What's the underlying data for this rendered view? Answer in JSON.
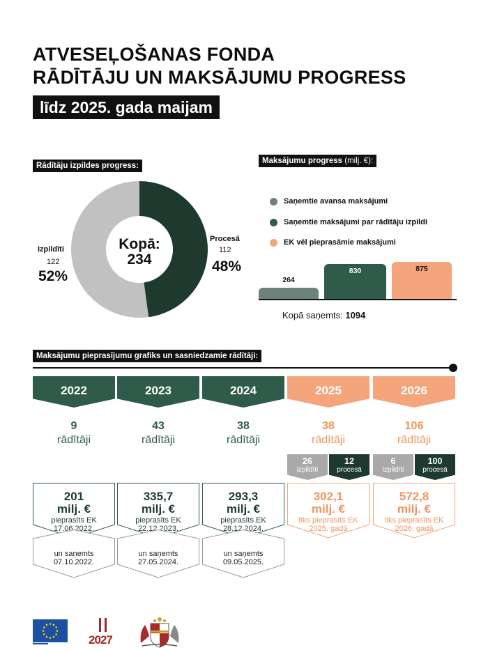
{
  "header": {
    "title_line1": "ATVESEĻOŠANAS FONDA",
    "title_line2": "RĀDĪTĀJU UN MAKSĀJUMU PROGRESS",
    "subtitle": "līdz 2025. gada maijam"
  },
  "indicators": {
    "section_label": "Rādītāju izpildes progress:",
    "center_label": "Kopā:",
    "center_value": "234",
    "done_label": "Izpildīti",
    "done_count": "122",
    "done_pct": "52%",
    "progress_label": "Procesā",
    "progress_count": "112",
    "progress_pct": "48%"
  },
  "payments": {
    "section_label": "Maksājumu progress",
    "section_unit": "(milj. €):",
    "legend": [
      {
        "label": "Saņemtie avansa maksājumi",
        "color": "#6e827c"
      },
      {
        "label": "Saņemtie maksājumi par rādītāju izpildi",
        "color": "#2f5c4a"
      },
      {
        "label": "EK vēl pieprasāmie maksājumi",
        "color": "#f4a57c"
      }
    ],
    "bar_labels": [
      "264",
      "830",
      "875"
    ],
    "total_label": "Kopā saņemts:",
    "total_value": "1094"
  },
  "schedule": {
    "section_label": "Maksājumu pieprasījumu grafiks un sasniedzamie rādītāji:",
    "years": [
      {
        "year": "2022",
        "count": "9",
        "unit": "rādītāji",
        "amount": "201",
        "amount_unit": "milj. €",
        "line1": "pieprasīts EK",
        "line2": "17.06.2022.",
        "received1": "un saņemts",
        "received2": "07.10.2022."
      },
      {
        "year": "2023",
        "count": "43",
        "unit": "rādītāji",
        "amount": "335,7",
        "amount_unit": "milj. €",
        "line1": "pieprasīts EK",
        "line2": "22.12.2023.",
        "received1": "un saņemts",
        "received2": "27.05.2024."
      },
      {
        "year": "2024",
        "count": "38",
        "unit": "rādītāji",
        "amount": "293,3",
        "amount_unit": "milj. €",
        "line1": "pieprasīts EK",
        "line2": "28.12.2024.",
        "received1": "un saņemts",
        "received2": "09.05.2025."
      },
      {
        "year": "2025",
        "count": "38",
        "unit": "rādītāji",
        "amount": "302,1",
        "amount_unit": "milj. €",
        "line1": "tiks pieprasīts EK",
        "line2": "2025. gadā",
        "tag_done_num": "26",
        "tag_done_lbl": "izpildīti",
        "tag_prog_num": "12",
        "tag_prog_lbl": "procesā"
      },
      {
        "year": "2026",
        "count": "106",
        "unit": "rādītāji",
        "amount": "572,8",
        "amount_unit": "milj. €",
        "line1": "tiks pieprasīts EK",
        "line2": "2026. gadā",
        "tag_done_num": "6",
        "tag_done_lbl": "izpildīti",
        "tag_prog_num": "100",
        "tag_prog_lbl": "procesā"
      }
    ]
  },
  "footer": {
    "logo_2027": "2027"
  },
  "chart_data": [
    {
      "type": "pie",
      "labels": [
        "Izpildīti",
        "Procesā"
      ],
      "values": [
        122,
        112
      ],
      "percentages": [
        52,
        48
      ],
      "colors": [
        "#c1c1c1",
        "#1e3a2f"
      ],
      "total": 234
    },
    {
      "type": "bar",
      "categories": [
        "Saņemtie avansa maksājumi",
        "Saņemtie maksājumi par rādītāju izpildi",
        "EK vēl pieprasāmie maksājumi"
      ],
      "values": [
        264,
        830,
        875
      ],
      "colors": [
        "#6e827c",
        "#2f5c4a",
        "#f4a57c"
      ],
      "ylabel": "milj. €",
      "ylim": [
        0,
        875
      ]
    }
  ]
}
